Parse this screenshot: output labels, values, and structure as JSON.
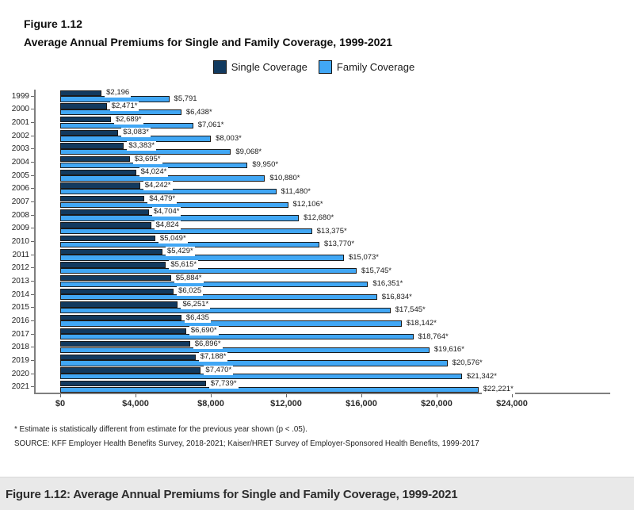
{
  "header": {
    "figure_label": "Figure 1.12",
    "title": "Average Annual Premiums for Single and Family Coverage, 1999-2021"
  },
  "legend": {
    "items": [
      {
        "label": "Single Coverage",
        "color": "#123A5F"
      },
      {
        "label": "Family Coverage",
        "color": "#41A7F5"
      }
    ]
  },
  "chart_data": {
    "type": "bar",
    "orientation": "horizontal",
    "title": "Average Annual Premiums for Single and Family Coverage, 1999-2021",
    "categories": [
      "1999",
      "2000",
      "2001",
      "2002",
      "2003",
      "2004",
      "2005",
      "2006",
      "2007",
      "2008",
      "2009",
      "2010",
      "2011",
      "2012",
      "2013",
      "2014",
      "2015",
      "2016",
      "2017",
      "2018",
      "2019",
      "2020",
      "2021"
    ],
    "series": [
      {
        "name": "Single Coverage",
        "color": "#123A5F",
        "values": [
          2196,
          2471,
          2689,
          3083,
          3383,
          3695,
          4024,
          4242,
          4479,
          4704,
          4824,
          5049,
          5429,
          5615,
          5884,
          6025,
          6251,
          6435,
          6690,
          6896,
          7188,
          7470,
          7739
        ],
        "labels": [
          "$2,196",
          "$2,471*",
          "$2,689*",
          "$3,083*",
          "$3,383*",
          "$3,695*",
          "$4,024*",
          "$4,242*",
          "$4,479*",
          "$4,704*",
          "$4,824",
          "$5,049*",
          "$5,429*",
          "$5,615*",
          "$5,884*",
          "$6,025",
          "$6,251*",
          "$6,435",
          "$6,690*",
          "$6,896*",
          "$7,188*",
          "$7,470*",
          "$7,739*"
        ]
      },
      {
        "name": "Family Coverage",
        "color": "#41A7F5",
        "values": [
          5791,
          6438,
          7061,
          8003,
          9068,
          9950,
          10880,
          11480,
          12106,
          12680,
          13375,
          13770,
          15073,
          15745,
          16351,
          16834,
          17545,
          18142,
          18764,
          19616,
          20576,
          21342,
          22221
        ],
        "labels": [
          "$5,791",
          "$6,438*",
          "$7,061*",
          "$8,003*",
          "$9,068*",
          "$9,950*",
          "$10,880*",
          "$11,480*",
          "$12,106*",
          "$12,680*",
          "$13,375*",
          "$13,770*",
          "$15,073*",
          "$15,745*",
          "$16,351*",
          "$16,834*",
          "$17,545*",
          "$18,142*",
          "$18,764*",
          "$19,616*",
          "$20,576*",
          "$21,342*",
          "$22,221*"
        ]
      }
    ],
    "xlim": [
      0,
      24000
    ],
    "x_ticks": [
      {
        "value": 0,
        "label": "$0"
      },
      {
        "value": 4000,
        "label": "$4,000"
      },
      {
        "value": 8000,
        "label": "$8,000"
      },
      {
        "value": 12000,
        "label": "$12,000"
      },
      {
        "value": 16000,
        "label": "$16,000"
      },
      {
        "value": 20000,
        "label": "$20,000"
      },
      {
        "value": 24000,
        "label": "$24,000"
      }
    ],
    "grid": false,
    "legend_position": "top",
    "bar_edge_color": "#1a1a1a",
    "axis_color": "#7f7f7f"
  },
  "footnotes": {
    "asterisk": "* Estimate is statistically different from estimate for the previous year shown (p < .05).",
    "source": "SOURCE: KFF Employer Health Benefits Survey, 2018-2021; Kaiser/HRET Survey of Employer-Sponsored Health Benefits, 1999-2017"
  },
  "caption": "Figure 1.12: Average Annual Premiums for Single and Family Coverage, 1999-2021"
}
